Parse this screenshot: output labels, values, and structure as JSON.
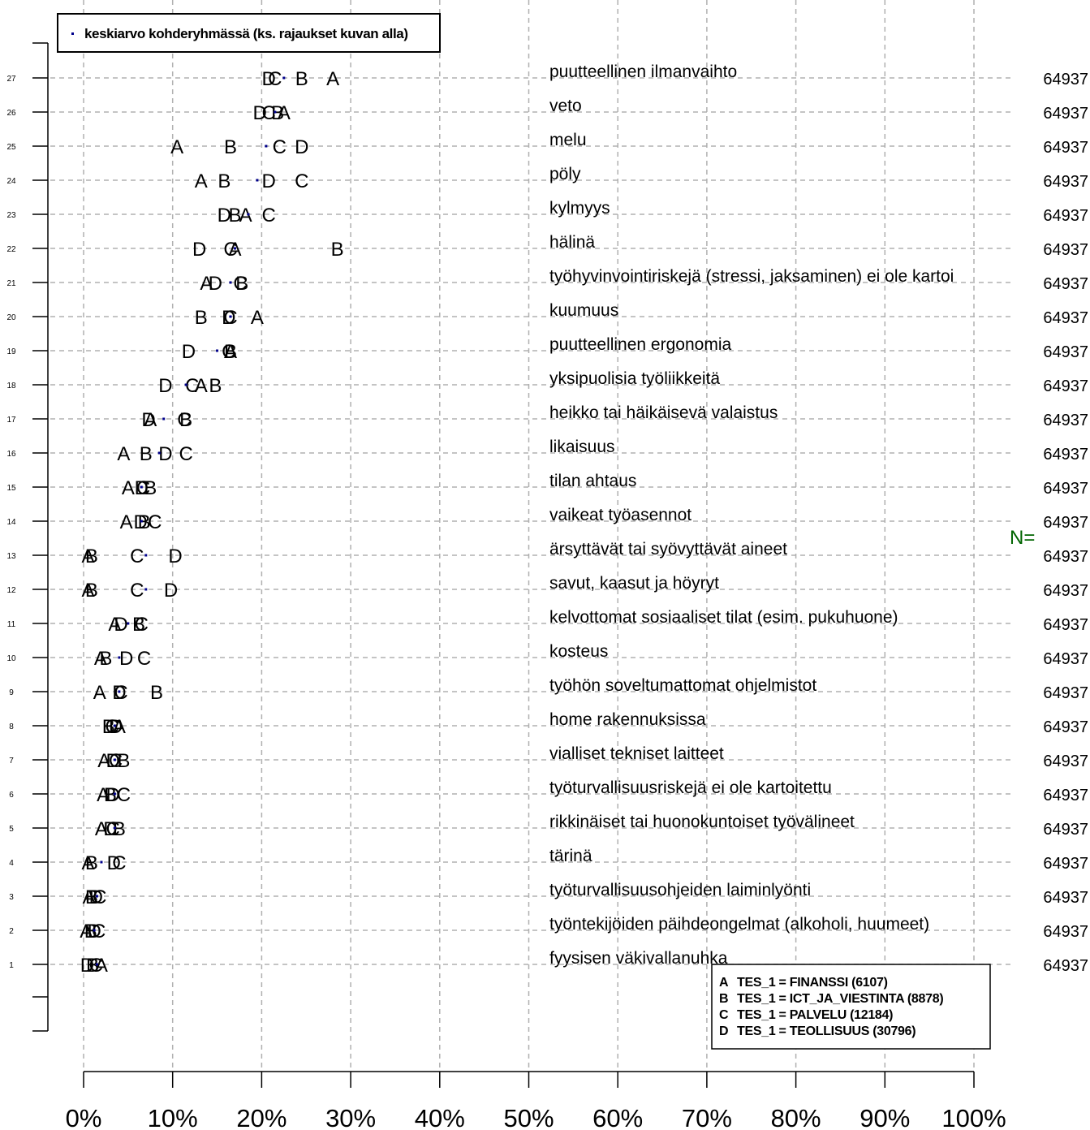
{
  "chart_data": {
    "type": "scatter",
    "legend": {
      "marker_label": "keskiarvo kohderyhmässä (ks. rajaukset kuvan alla)",
      "placement": "top-left"
    },
    "groups_legend": {
      "placement": "bottom-right",
      "entries": [
        {
          "letter": "A",
          "text": "TES_1 = FINANSSI (6107)"
        },
        {
          "letter": "B",
          "text": "TES_1 = ICT_JA_VIESTINTA (8878)"
        },
        {
          "letter": "C",
          "text": "TES_1 = PALVELU (12184)"
        },
        {
          "letter": "D",
          "text": "TES_1 = TEOLLISUUS (30796)"
        }
      ]
    },
    "n_label": "N=",
    "x_ticks": [
      "0%",
      "10%",
      "20%",
      "30%",
      "40%",
      "50%",
      "60%",
      "70%",
      "80%",
      "90%",
      "100%"
    ],
    "xlim": [
      0,
      100
    ],
    "grid": true,
    "rows": [
      {
        "num": "27",
        "label": "puutteellinen ilmanvaihto",
        "n": "64937",
        "mean": 22.5,
        "A": 28.0,
        "B": 24.5,
        "C": 21.5,
        "D": 20.8
      },
      {
        "num": "26",
        "label": "veto",
        "n": "64937",
        "mean": 21.5,
        "A": 22.5,
        "B": 21.8,
        "C": 20.8,
        "D": 19.8
      },
      {
        "num": "25",
        "label": "melu",
        "n": "64937",
        "mean": 20.5,
        "A": 10.5,
        "B": 16.5,
        "C": 22.0,
        "D": 24.5
      },
      {
        "num": "24",
        "label": "pöly",
        "n": "64937",
        "mean": 19.5,
        "A": 13.2,
        "B": 15.8,
        "C": 24.5,
        "D": 20.8
      },
      {
        "num": "23",
        "label": "kylmyys",
        "n": "64937",
        "mean": 18.5,
        "A": 18.2,
        "B": 17.0,
        "C": 20.8,
        "D": 15.8
      },
      {
        "num": "22",
        "label": "hälinä",
        "n": "64937",
        "mean": 17.0,
        "A": 17.0,
        "B": 28.5,
        "C": 16.5,
        "D": 13.0
      },
      {
        "num": "21",
        "label": "työhyvinvointiriskejä (stressi, jaksaminen) ei ole kartoi",
        "n": "64937",
        "mean": 16.5,
        "A": 13.8,
        "B": 17.8,
        "C": 17.6,
        "D": 14.8
      },
      {
        "num": "20",
        "label": "kuumuus",
        "n": "64937",
        "mean": 16.5,
        "A": 19.5,
        "B": 13.2,
        "C": 16.5,
        "D": 16.3
      },
      {
        "num": "19",
        "label": "puutteellinen ergonomia",
        "n": "64937",
        "mean": 15.0,
        "A": 16.5,
        "B": 16.5,
        "C": 16.3,
        "D": 11.8
      },
      {
        "num": "18",
        "label": "yksipuolisia työliikkeitä",
        "n": "64937",
        "mean": 11.5,
        "A": 13.2,
        "B": 14.8,
        "C": 12.2,
        "D": 9.2
      },
      {
        "num": "17",
        "label": "heikko tai häikäisevä valaistus",
        "n": "64937",
        "mean": 9.0,
        "A": 7.5,
        "B": 11.5,
        "C": 11.3,
        "D": 7.3
      },
      {
        "num": "16",
        "label": "likaisuus",
        "n": "64937",
        "mean": 8.5,
        "A": 4.5,
        "B": 7.0,
        "C": 11.5,
        "D": 9.2
      },
      {
        "num": "15",
        "label": "tilan ahtaus",
        "n": "64937",
        "mean": 6.5,
        "A": 5.0,
        "B": 7.5,
        "C": 6.7,
        "D": 6.5
      },
      {
        "num": "14",
        "label": "vaikeat työasennot",
        "n": "64937",
        "mean": 6.5,
        "A": 4.8,
        "B": 6.8,
        "C": 8.0,
        "D": 6.4
      },
      {
        "num": "13",
        "label": "ärsyttävät tai syövyttävät aineet",
        "n": "64937",
        "mean": 7.0,
        "A": 0.5,
        "B": 0.9,
        "C": 6.0,
        "D": 10.3
      },
      {
        "num": "12",
        "label": "savut, kaasut ja höyryt",
        "n": "64937",
        "mean": 7.0,
        "A": 0.5,
        "B": 0.9,
        "C": 6.0,
        "D": 9.8
      },
      {
        "num": "11",
        "label": "kelvottomat sosiaaliset tilat (esim. pukuhuone)",
        "n": "64937",
        "mean": 5.0,
        "A": 3.5,
        "B": 6.2,
        "C": 6.5,
        "D": 4.2
      },
      {
        "num": "10",
        "label": "kosteus",
        "n": "64937",
        "mean": 4.0,
        "A": 1.9,
        "B": 2.5,
        "C": 6.8,
        "D": 4.8
      },
      {
        "num": "9",
        "label": "työhön soveltumattomat ohjelmistot",
        "n": "64937",
        "mean": 4.0,
        "A": 1.8,
        "B": 8.2,
        "C": 4.2,
        "D": 4.0
      },
      {
        "num": "8",
        "label": "home rakennuksissa",
        "n": "64937",
        "mean": 3.5,
        "A": 4.0,
        "B": 2.8,
        "C": 3.2,
        "D": 3.6
      },
      {
        "num": "7",
        "label": "vialliset tekniset laitteet",
        "n": "64937",
        "mean": 3.5,
        "A": 2.3,
        "B": 4.5,
        "C": 3.6,
        "D": 3.3
      },
      {
        "num": "6",
        "label": "työturvallisuusriskejä ei ole kartoitettu",
        "n": "64937",
        "mean": 3.5,
        "A": 2.2,
        "B": 3.0,
        "C": 4.5,
        "D": 3.3
      },
      {
        "num": "5",
        "label": "rikkinäiset tai huonokuntoiset työvälineet",
        "n": "64937",
        "mean": 3.5,
        "A": 2.0,
        "B": 4.0,
        "C": 3.3,
        "D": 3.0
      },
      {
        "num": "4",
        "label": "tärinä",
        "n": "64937",
        "mean": 2.0,
        "A": 0.5,
        "B": 0.9,
        "C": 4.0,
        "D": 3.4
      },
      {
        "num": "3",
        "label": "työturvallisuusohjeiden laiminlyönti",
        "n": "64937",
        "mean": 1.5,
        "A": 0.6,
        "B": 0.9,
        "C": 1.8,
        "D": 1.4
      },
      {
        "num": "2",
        "label": "työntekijöiden päihdeongelmat (alkoholi, huumeet)",
        "n": "64937",
        "mean": 1.2,
        "A": 0.3,
        "B": 0.8,
        "C": 1.7,
        "D": 1.2
      },
      {
        "num": "1",
        "label": "fyysisen väkivallanuhka",
        "n": "64937",
        "mean": 1.5,
        "A": 2.0,
        "B": 1.0,
        "C": 1.4,
        "D": 0.4
      }
    ],
    "colors": {
      "mean_marker": "#00008b",
      "grid": "#b0b0b0",
      "n_label": "#006400",
      "text": "#000000"
    }
  }
}
